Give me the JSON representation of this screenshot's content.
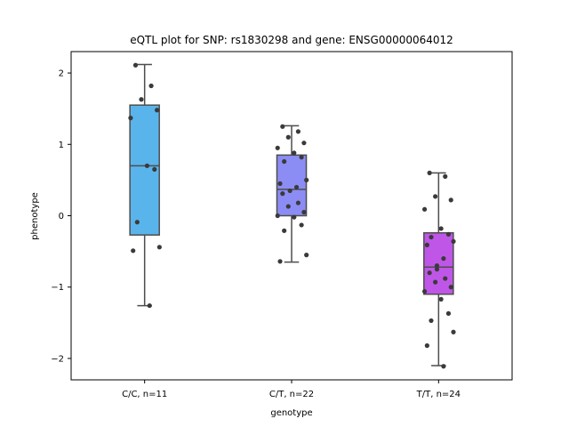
{
  "chart_data": {
    "type": "box",
    "title": "eQTL plot for SNP: rs1830298 and gene: ENSG00000064012",
    "xlabel": "genotype",
    "ylabel": "phenotype",
    "ylim": [
      -2.3,
      2.3
    ],
    "yticks": [
      2,
      1,
      0,
      -1,
      -2
    ],
    "ytick_labels": [
      "2",
      "1",
      "0",
      "−1",
      "−2"
    ],
    "grid": false,
    "groups": [
      {
        "label": "C/C, n=11",
        "color": "#5ab4ec",
        "box": {
          "whisker_low": -1.26,
          "q1": -0.27,
          "median": 0.7,
          "q3": 1.55,
          "whisker_high": 2.12
        },
        "points": [
          2.11,
          1.82,
          1.63,
          1.48,
          1.37,
          0.7,
          0.65,
          -0.09,
          -0.44,
          -0.49,
          -1.26
        ]
      },
      {
        "label": "C/T, n=22",
        "color": "#8c8cf5",
        "box": {
          "whisker_low": -0.65,
          "q1": 0.0,
          "median": 0.37,
          "q3": 0.85,
          "whisker_high": 1.26
        },
        "points": [
          1.25,
          1.18,
          1.1,
          1.02,
          0.95,
          0.88,
          0.82,
          0.76,
          0.5,
          0.45,
          0.4,
          0.35,
          0.31,
          0.18,
          0.13,
          0.05,
          0.0,
          -0.02,
          -0.13,
          -0.21,
          -0.55,
          -0.64
        ]
      },
      {
        "label": "T/T, n=24",
        "color": "#c056e8",
        "box": {
          "whisker_low": -2.1,
          "q1": -1.1,
          "median": -0.72,
          "q3": -0.24,
          "whisker_high": 0.6
        },
        "points": [
          0.6,
          0.55,
          0.27,
          0.22,
          0.09,
          -0.18,
          -0.26,
          -0.3,
          -0.36,
          -0.41,
          -0.6,
          -0.75,
          -0.8,
          -0.88,
          -0.93,
          -1.0,
          -1.06,
          -1.17,
          -1.37,
          -1.47,
          -1.63,
          -1.82,
          -2.11,
          -0.7
        ]
      }
    ]
  }
}
